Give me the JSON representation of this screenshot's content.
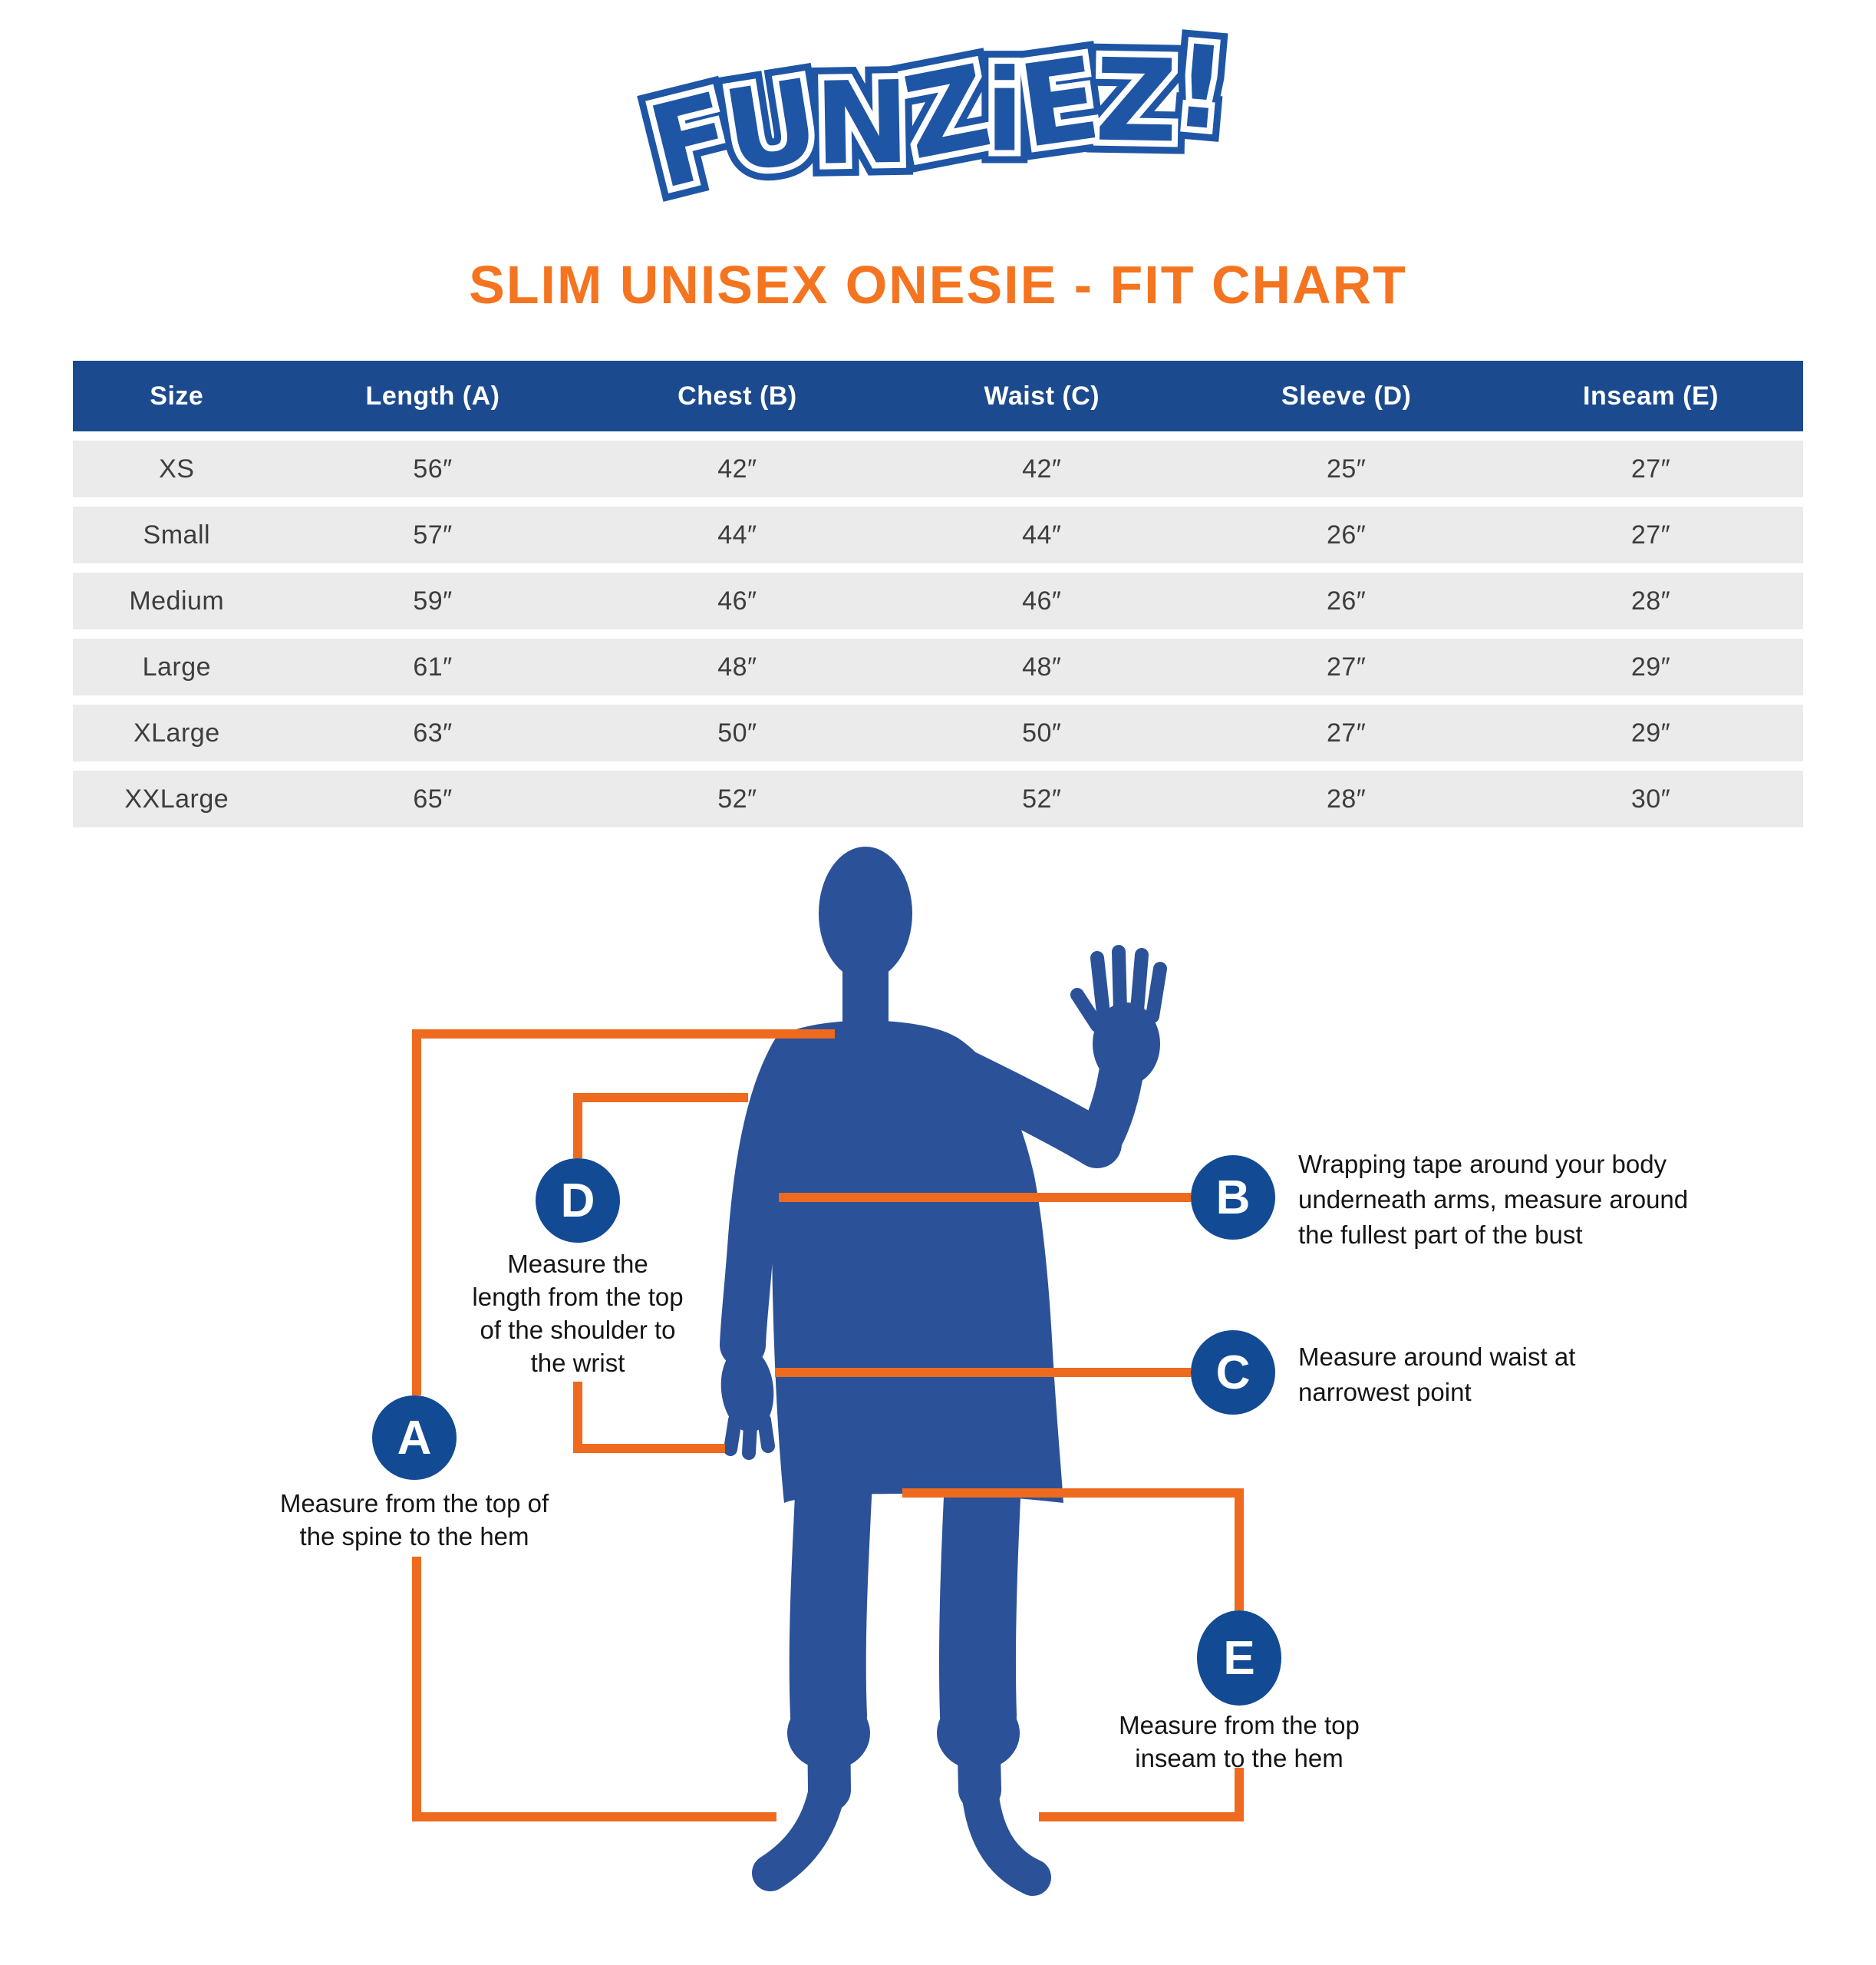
{
  "logo": {
    "text": "FUNZiEZ!"
  },
  "title": "SLIM UNISEX ONESIE - FIT CHART",
  "table": {
    "headers": [
      "Size",
      "Length (A)",
      "Chest (B)",
      "Waist (C)",
      "Sleeve (D)",
      "Inseam (E)"
    ],
    "rows": [
      [
        "XS",
        "56″",
        "42″",
        "42″",
        "25″",
        "27″"
      ],
      [
        "Small",
        "57″",
        "44″",
        "44″",
        "26″",
        "27″"
      ],
      [
        "Medium",
        "59″",
        "46″",
        "46″",
        "26″",
        "28″"
      ],
      [
        "Large",
        "61″",
        "48″",
        "48″",
        "27″",
        "29″"
      ],
      [
        "XLarge",
        "63″",
        "50″",
        "50″",
        "27″",
        "29″"
      ],
      [
        "XXLarge",
        "65″",
        "52″",
        "52″",
        "28″",
        "30″"
      ]
    ]
  },
  "diagram": {
    "callouts": {
      "A": {
        "letter": "A",
        "text": "Measure from the top of\nthe spine to the hem"
      },
      "B": {
        "letter": "B",
        "text": "Wrapping tape around your body\nunderneath arms, measure around\nthe fullest part of the bust"
      },
      "C": {
        "letter": "C",
        "text": "Measure around waist at\nnarrowest point"
      },
      "D": {
        "letter": "D",
        "text": "Measure the\nlength from the top\nof the shoulder to\nthe wrist"
      },
      "E": {
        "letter": "E",
        "text": "Measure from the top\ninseam to the hem"
      }
    },
    "colors": {
      "line_orange": "#ee6a1e",
      "circle_blue": "#134a94",
      "figure_blue": "#2b5198",
      "header_blue": "#1c4a8e",
      "title_orange": "#f47420",
      "logo_blue": "#1f55a5",
      "row_gray": "#ebebeb"
    }
  }
}
